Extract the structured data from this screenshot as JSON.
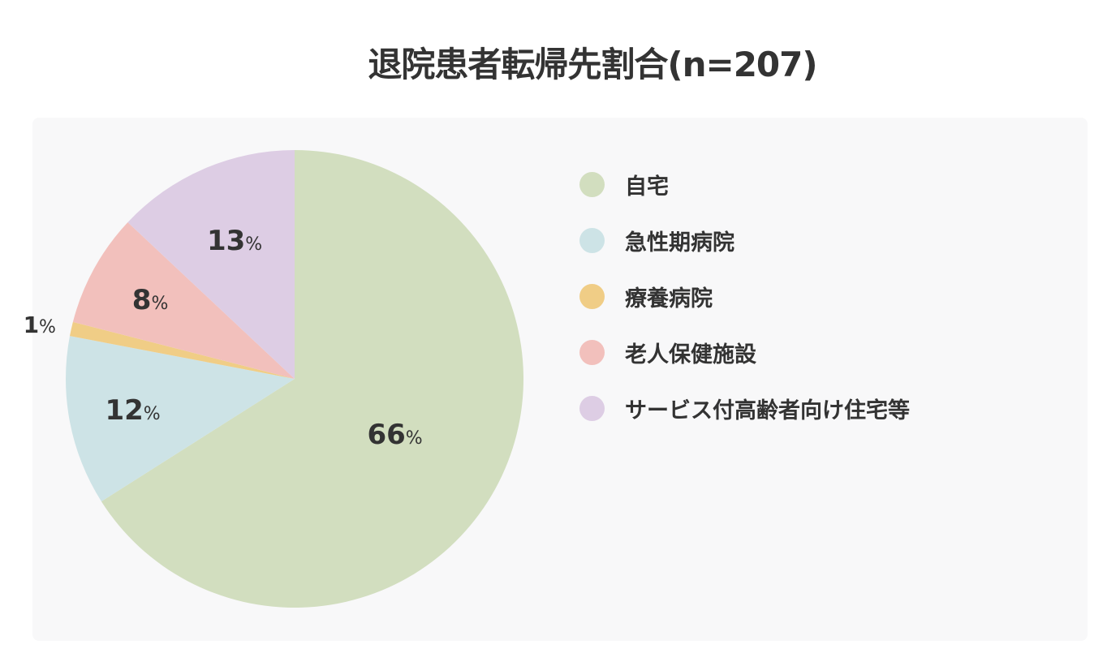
{
  "chart_data": {
    "type": "pie",
    "title": "退院患者転帰先割合(n=207)",
    "categories": [
      "自宅",
      "急性期病院",
      "療養病院",
      "老人保健施設",
      "サービス付高齢者向け住宅等"
    ],
    "values": [
      66,
      12,
      1,
      8,
      13
    ],
    "unit": "%",
    "colors": [
      "#d2debf",
      "#cde3e6",
      "#f0cd86",
      "#f2c0bc",
      "#ddcde4"
    ],
    "legend_position": "right",
    "value_labels": [
      "66",
      "12",
      "1",
      "8",
      "13"
    ]
  }
}
